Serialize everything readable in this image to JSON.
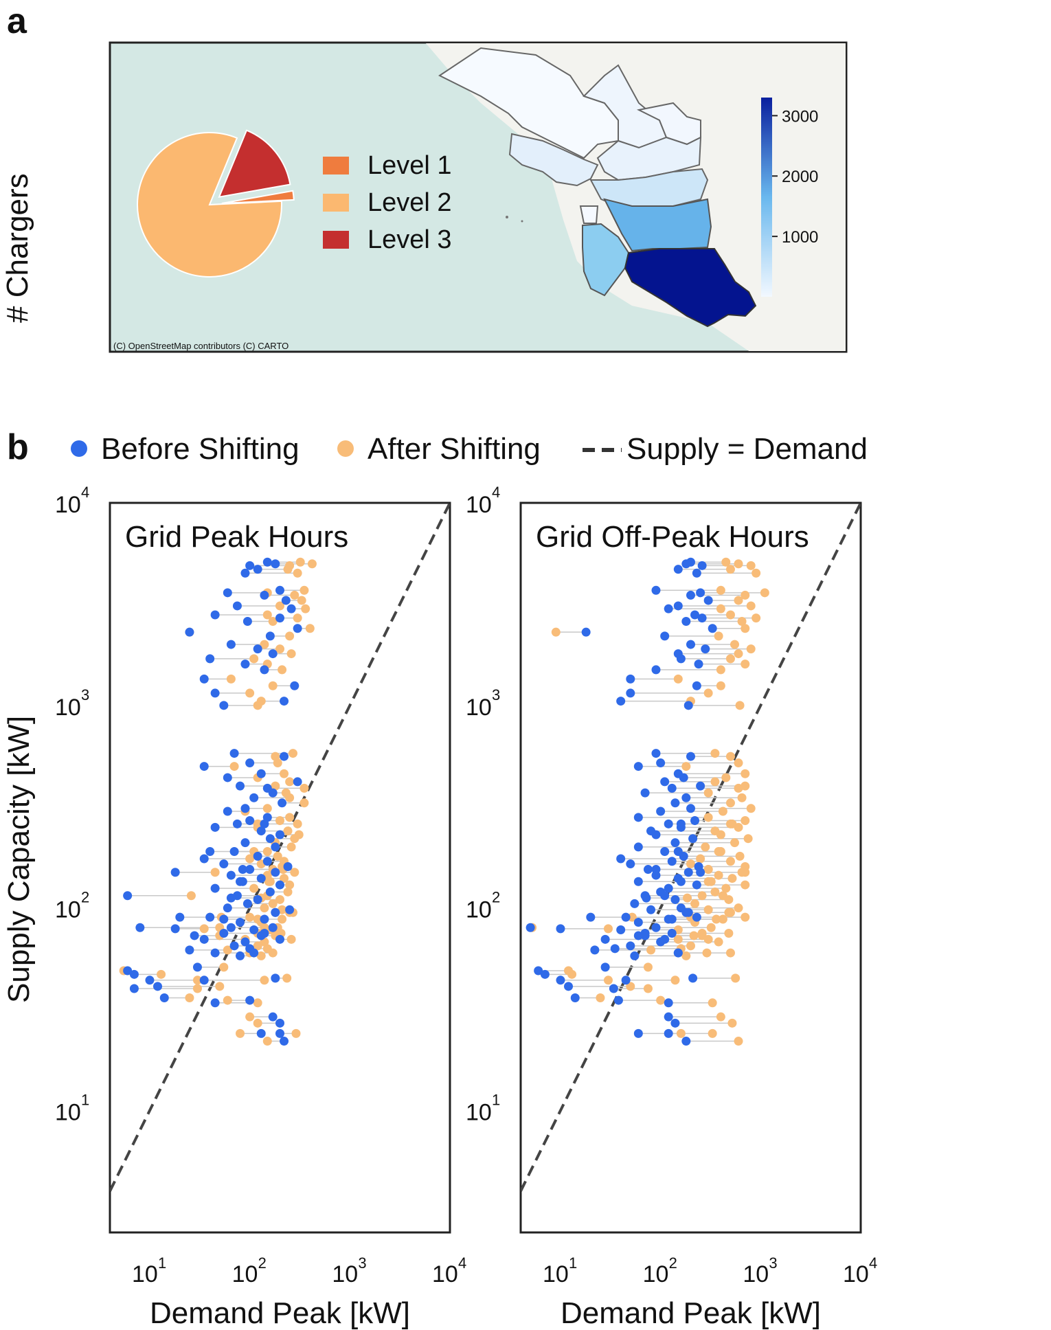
{
  "panel_a": {
    "letter": "a",
    "side_label": "# Chargers",
    "attribution": "(C) OpenStreetMap contributors (C) CARTO",
    "colorbar_ticks": [
      "3000",
      "2000",
      "1000"
    ],
    "colorbar_values": [
      3000,
      2000,
      1000
    ],
    "colorbar_max": 3300,
    "colorbar_colors": {
      "low": "#f2f8ff",
      "mid": "#6ab8ee",
      "high": "#0a1f9e"
    }
  },
  "panel_b": {
    "letter": "b",
    "legend": {
      "before": "Before Shifting",
      "after": "After Shifting",
      "supply": "Supply = Demand"
    },
    "colors": {
      "before": "#2f6ae8",
      "after": "#f8bc78",
      "link": "#c8c8c8",
      "diagonal": "#444444"
    },
    "ylabel": "Supply Capacity [kW]",
    "xlabel": "Demand Peak [kW]",
    "tick_base": "10",
    "tick_exponents": [
      "1",
      "2",
      "3",
      "4"
    ]
  },
  "chart_data": [
    {
      "type": "pie",
      "labels": [
        "Level 1",
        "Level 2",
        "Level 3"
      ],
      "values": [
        2,
        82,
        16
      ],
      "colors": [
        "#ef7c3e",
        "#fbb870",
        "#c42f2f"
      ],
      "exploded": [
        "Level 1",
        "Level 3"
      ]
    },
    {
      "type": "scatter",
      "title": "Grid Peak Hours",
      "xlabel": "Demand Peak [kW]",
      "ylabel": "Supply Capacity [kW]",
      "xscale": "log",
      "yscale": "log",
      "xlim": [
        4,
        10000
      ],
      "ylim": [
        2.5,
        10000
      ],
      "pairs": [
        [
          5100,
          150,
          320
        ],
        [
          5000,
          180,
          420
        ],
        [
          4900,
          100,
          250
        ],
        [
          4700,
          120,
          240
        ],
        [
          4500,
          90,
          300
        ],
        [
          3700,
          200,
          350
        ],
        [
          3500,
          140,
          280
        ],
        [
          3600,
          60,
          150
        ],
        [
          3300,
          230,
          330
        ],
        [
          3100,
          75,
          200
        ],
        [
          3000,
          260,
          360
        ],
        [
          2800,
          45,
          150
        ],
        [
          2700,
          200,
          300
        ],
        [
          2600,
          95,
          170
        ],
        [
          2400,
          300,
          400
        ],
        [
          2300,
          25,
          25
        ],
        [
          2200,
          160,
          250
        ],
        [
          2000,
          65,
          140
        ],
        [
          1900,
          120,
          200
        ],
        [
          1800,
          170,
          260
        ],
        [
          1700,
          40,
          110
        ],
        [
          1600,
          90,
          150
        ],
        [
          1500,
          140,
          210
        ],
        [
          1350,
          35,
          65
        ],
        [
          1250,
          280,
          170
        ],
        [
          1150,
          45,
          100
        ],
        [
          1050,
          220,
          130
        ],
        [
          1000,
          55,
          120
        ],
        [
          580,
          70,
          270
        ],
        [
          560,
          220,
          180
        ],
        [
          520,
          100,
          190
        ],
        [
          500,
          35,
          70
        ],
        [
          460,
          130,
          220
        ],
        [
          440,
          60,
          120
        ],
        [
          420,
          300,
          250
        ],
        [
          400,
          80,
          180
        ],
        [
          390,
          150,
          350
        ],
        [
          370,
          170,
          230
        ],
        [
          350,
          110,
          250
        ],
        [
          330,
          210,
          350
        ],
        [
          310,
          90,
          150
        ],
        [
          300,
          60,
          90
        ],
        [
          280,
          150,
          250
        ],
        [
          270,
          100,
          200
        ],
        [
          260,
          75,
          120
        ],
        [
          250,
          45,
          120
        ],
        [
          240,
          130,
          240
        ],
        [
          230,
          200,
          310
        ],
        [
          220,
          160,
          280
        ],
        [
          210,
          90,
          180
        ],
        [
          200,
          180,
          260
        ],
        [
          190,
          70,
          150
        ],
        [
          180,
          120,
          190
        ],
        [
          175,
          35,
          100
        ],
        [
          170,
          150,
          220
        ],
        [
          165,
          55,
          130
        ],
        [
          160,
          240,
          210
        ],
        [
          155,
          100,
          170
        ],
        [
          150,
          180,
          280
        ],
        [
          145,
          65,
          150
        ],
        [
          140,
          130,
          220
        ],
        [
          135,
          85,
          160
        ],
        [
          130,
          200,
          250
        ],
        [
          125,
          45,
          110
        ],
        [
          120,
          160,
          240
        ],
        [
          115,
          75,
          150
        ],
        [
          110,
          120,
          200
        ],
        [
          105,
          95,
          170
        ],
        [
          100,
          60,
          140
        ],
        [
          98,
          250,
          210
        ],
        [
          95,
          180,
          270
        ],
        [
          90,
          40,
          100
        ],
        [
          88,
          140,
          210
        ],
        [
          85,
          80,
          130
        ],
        [
          80,
          65,
          140
        ],
        [
          78,
          110,
          160
        ],
        [
          75,
          55,
          120
        ],
        [
          73,
          130,
          180
        ],
        [
          70,
          35,
          90
        ],
        [
          68,
          90,
          140
        ],
        [
          65,
          70,
          120
        ],
        [
          63,
          100,
          150
        ],
        [
          60,
          45,
          100
        ],
        [
          58,
          80,
          130
        ],
        [
          80,
          8,
          50
        ],
        [
          49,
          6,
          5.5
        ],
        [
          47,
          7,
          13
        ],
        [
          44,
          10,
          30
        ],
        [
          41,
          12,
          50
        ],
        [
          36,
          14,
          25
        ],
        [
          35,
          100,
          60
        ],
        [
          29,
          170,
          100
        ],
        [
          27,
          200,
          120
        ],
        [
          24,
          130,
          80
        ],
        [
          22,
          220,
          150
        ],
        [
          79,
          18,
          35
        ],
        [
          62,
          25,
          60
        ],
        [
          51,
          30,
          55
        ],
        [
          80,
          170,
          190
        ],
        [
          135,
          80,
          155
        ],
        [
          40,
          7,
          30
        ],
        [
          75,
          140,
          205
        ],
        [
          44,
          35,
          140
        ],
        [
          70,
          200,
          260
        ],
        [
          90,
          20,
          52
        ],
        [
          112,
          65,
          130
        ],
        [
          155,
          85,
          215
        ],
        [
          60,
          110,
          170
        ],
        [
          34,
          45,
          120
        ],
        [
          150,
          18,
          45
        ],
        [
          260,
          140,
          300
        ],
        [
          95,
          180,
          250
        ],
        [
          24,
          200,
          290
        ],
        [
          88,
          55,
          120
        ],
        [
          45,
          180,
          235
        ],
        [
          190,
          40,
          110
        ],
        [
          73,
          28,
          50
        ],
        [
          115,
          6,
          26
        ]
      ]
    },
    {
      "type": "scatter",
      "title": "Grid Off-Peak Hours",
      "xlabel": "Demand Peak [kW]",
      "ylabel": "Supply Capacity [kW]",
      "xscale": "log",
      "yscale": "log",
      "xlim": [
        4,
        10000
      ],
      "ylim": [
        2.5,
        10000
      ],
      "pairs": [
        [
          5100,
          200,
          450
        ],
        [
          5000,
          180,
          600
        ],
        [
          4900,
          260,
          800
        ],
        [
          4700,
          150,
          500
        ],
        [
          4500,
          230,
          900
        ],
        [
          3700,
          90,
          400
        ],
        [
          3500,
          200,
          700
        ],
        [
          3600,
          250,
          1100
        ],
        [
          3300,
          300,
          600
        ],
        [
          3100,
          150,
          800
        ],
        [
          3000,
          120,
          400
        ],
        [
          2800,
          220,
          500
        ],
        [
          2700,
          260,
          900
        ],
        [
          2600,
          180,
          650
        ],
        [
          2400,
          330,
          700
        ],
        [
          2300,
          18,
          9
        ],
        [
          2200,
          110,
          380
        ],
        [
          2000,
          200,
          550
        ],
        [
          1900,
          280,
          800
        ],
        [
          1800,
          150,
          600
        ],
        [
          1700,
          160,
          500
        ],
        [
          1600,
          240,
          700
        ],
        [
          1500,
          90,
          400
        ],
        [
          1350,
          50,
          150
        ],
        [
          1250,
          230,
          400
        ],
        [
          1150,
          50,
          300
        ],
        [
          1050,
          40,
          200
        ],
        [
          1000,
          190,
          620
        ],
        [
          580,
          90,
          350
        ],
        [
          560,
          200,
          500
        ],
        [
          520,
          100,
          600
        ],
        [
          500,
          60,
          180
        ],
        [
          460,
          150,
          700
        ],
        [
          440,
          170,
          450
        ],
        [
          420,
          110,
          350
        ],
        [
          400,
          250,
          700
        ],
        [
          390,
          130,
          600
        ],
        [
          370,
          70,
          300
        ],
        [
          350,
          180,
          650
        ],
        [
          330,
          140,
          500
        ],
        [
          310,
          200,
          800
        ],
        [
          300,
          100,
          420
        ],
        [
          280,
          60,
          300
        ],
        [
          270,
          220,
          700
        ],
        [
          260,
          120,
          500
        ],
        [
          250,
          160,
          600
        ],
        [
          240,
          80,
          350
        ],
        [
          230,
          90,
          400
        ],
        [
          220,
          210,
          750
        ],
        [
          210,
          140,
          550
        ],
        [
          200,
          60,
          280
        ],
        [
          190,
          110,
          400
        ],
        [
          180,
          170,
          620
        ],
        [
          175,
          40,
          250
        ],
        [
          170,
          130,
          500
        ],
        [
          165,
          50,
          200
        ],
        [
          160,
          240,
          700
        ],
        [
          155,
          75,
          300
        ],
        [
          150,
          190,
          650
        ],
        [
          145,
          90,
          380
        ],
        [
          140,
          150,
          520
        ],
        [
          135,
          60,
          300
        ],
        [
          130,
          230,
          700
        ],
        [
          125,
          120,
          450
        ],
        [
          120,
          100,
          350
        ],
        [
          115,
          70,
          260
        ],
        [
          110,
          140,
          480
        ],
        [
          105,
          55,
          220
        ],
        [
          100,
          160,
          600
        ],
        [
          98,
          80,
          300
        ],
        [
          95,
          180,
          500
        ],
        [
          90,
          45,
          200
        ],
        [
          88,
          120,
          420
        ],
        [
          85,
          60,
          220
        ],
        [
          80,
          90,
          320
        ],
        [
          78,
          40,
          150
        ],
        [
          75,
          130,
          480
        ],
        [
          73,
          70,
          260
        ],
        [
          70,
          28,
          150
        ],
        [
          68,
          100,
          380
        ],
        [
          65,
          50,
          200
        ],
        [
          63,
          35,
          160
        ],
        [
          60,
          150,
          500
        ],
        [
          58,
          55,
          180
        ],
        [
          80,
          5,
          5.2
        ],
        [
          49,
          6,
          12
        ],
        [
          47,
          7,
          13
        ],
        [
          44,
          10,
          30
        ],
        [
          41,
          12,
          50
        ],
        [
          36,
          14,
          25
        ],
        [
          35,
          38,
          100
        ],
        [
          29,
          120,
          400
        ],
        [
          27,
          140,
          520
        ],
        [
          24,
          120,
          330
        ],
        [
          22,
          180,
          600
        ],
        [
          79,
          10,
          30
        ],
        [
          62,
          22,
          80
        ],
        [
          51,
          28,
          75
        ],
        [
          90,
          230,
          700
        ],
        [
          135,
          160,
          320
        ],
        [
          40,
          34,
          75
        ],
        [
          75,
          70,
          260
        ],
        [
          44,
          45,
          140
        ],
        [
          70,
          110,
          300
        ],
        [
          90,
          20,
          52
        ],
        [
          112,
          72,
          185
        ],
        [
          155,
          90,
          300
        ],
        [
          60,
          150,
          290
        ],
        [
          34,
          120,
          330
        ],
        [
          150,
          250,
          700
        ],
        [
          260,
          160,
          520
        ],
        [
          95,
          190,
          480
        ],
        [
          24,
          60,
          160
        ],
        [
          88,
          130,
          360
        ],
        [
          45,
          210,
          560
        ],
        [
          190,
          150,
          380
        ],
        [
          73,
          60,
          215
        ],
        [
          115,
          110,
          420
        ]
      ]
    }
  ]
}
